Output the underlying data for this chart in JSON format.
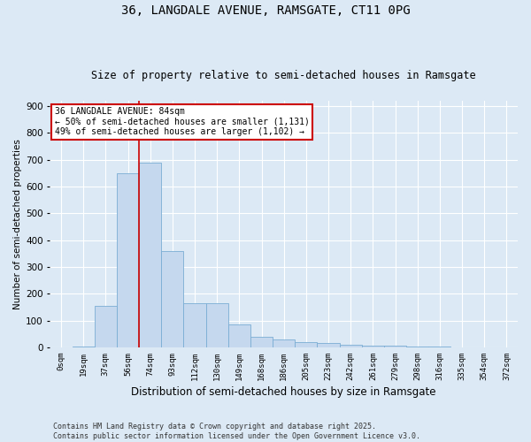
{
  "title1": "36, LANGDALE AVENUE, RAMSGATE, CT11 0PG",
  "title2": "Size of property relative to semi-detached houses in Ramsgate",
  "xlabel": "Distribution of semi-detached houses by size in Ramsgate",
  "ylabel": "Number of semi-detached properties",
  "categories": [
    "0sqm",
    "19sqm",
    "37sqm",
    "56sqm",
    "74sqm",
    "93sqm",
    "112sqm",
    "130sqm",
    "149sqm",
    "168sqm",
    "186sqm",
    "205sqm",
    "223sqm",
    "242sqm",
    "261sqm",
    "279sqm",
    "298sqm",
    "316sqm",
    "335sqm",
    "354sqm",
    "372sqm"
  ],
  "values": [
    0,
    2,
    155,
    650,
    690,
    360,
    165,
    165,
    85,
    40,
    30,
    20,
    15,
    10,
    8,
    5,
    3,
    2,
    1,
    0,
    0
  ],
  "bar_color": "#c5d8ee",
  "bar_edge_color": "#7aadd4",
  "annotation_title": "36 LANGDALE AVENUE: 84sqm",
  "annotation_line1": "← 50% of semi-detached houses are smaller (1,131)",
  "annotation_line2": "49% of semi-detached houses are larger (1,102) →",
  "vline_x": 3.5,
  "vline_color": "#cc0000",
  "ylim": [
    0,
    920
  ],
  "yticks": [
    0,
    100,
    200,
    300,
    400,
    500,
    600,
    700,
    800,
    900
  ],
  "footer1": "Contains HM Land Registry data © Crown copyright and database right 2025.",
  "footer2": "Contains public sector information licensed under the Open Government Licence v3.0.",
  "bg_color": "#dce9f5",
  "plot_bg_color": "#dce9f5",
  "annotation_box_color": "#ffffff",
  "annotation_box_edge": "#cc0000",
  "title1_fontsize": 10,
  "title2_fontsize": 8.5,
  "xlabel_fontsize": 8.5,
  "ylabel_fontsize": 7.5,
  "tick_fontsize": 6.5,
  "ytick_fontsize": 7.5,
  "footer_fontsize": 6.0,
  "ann_fontsize": 7.0
}
